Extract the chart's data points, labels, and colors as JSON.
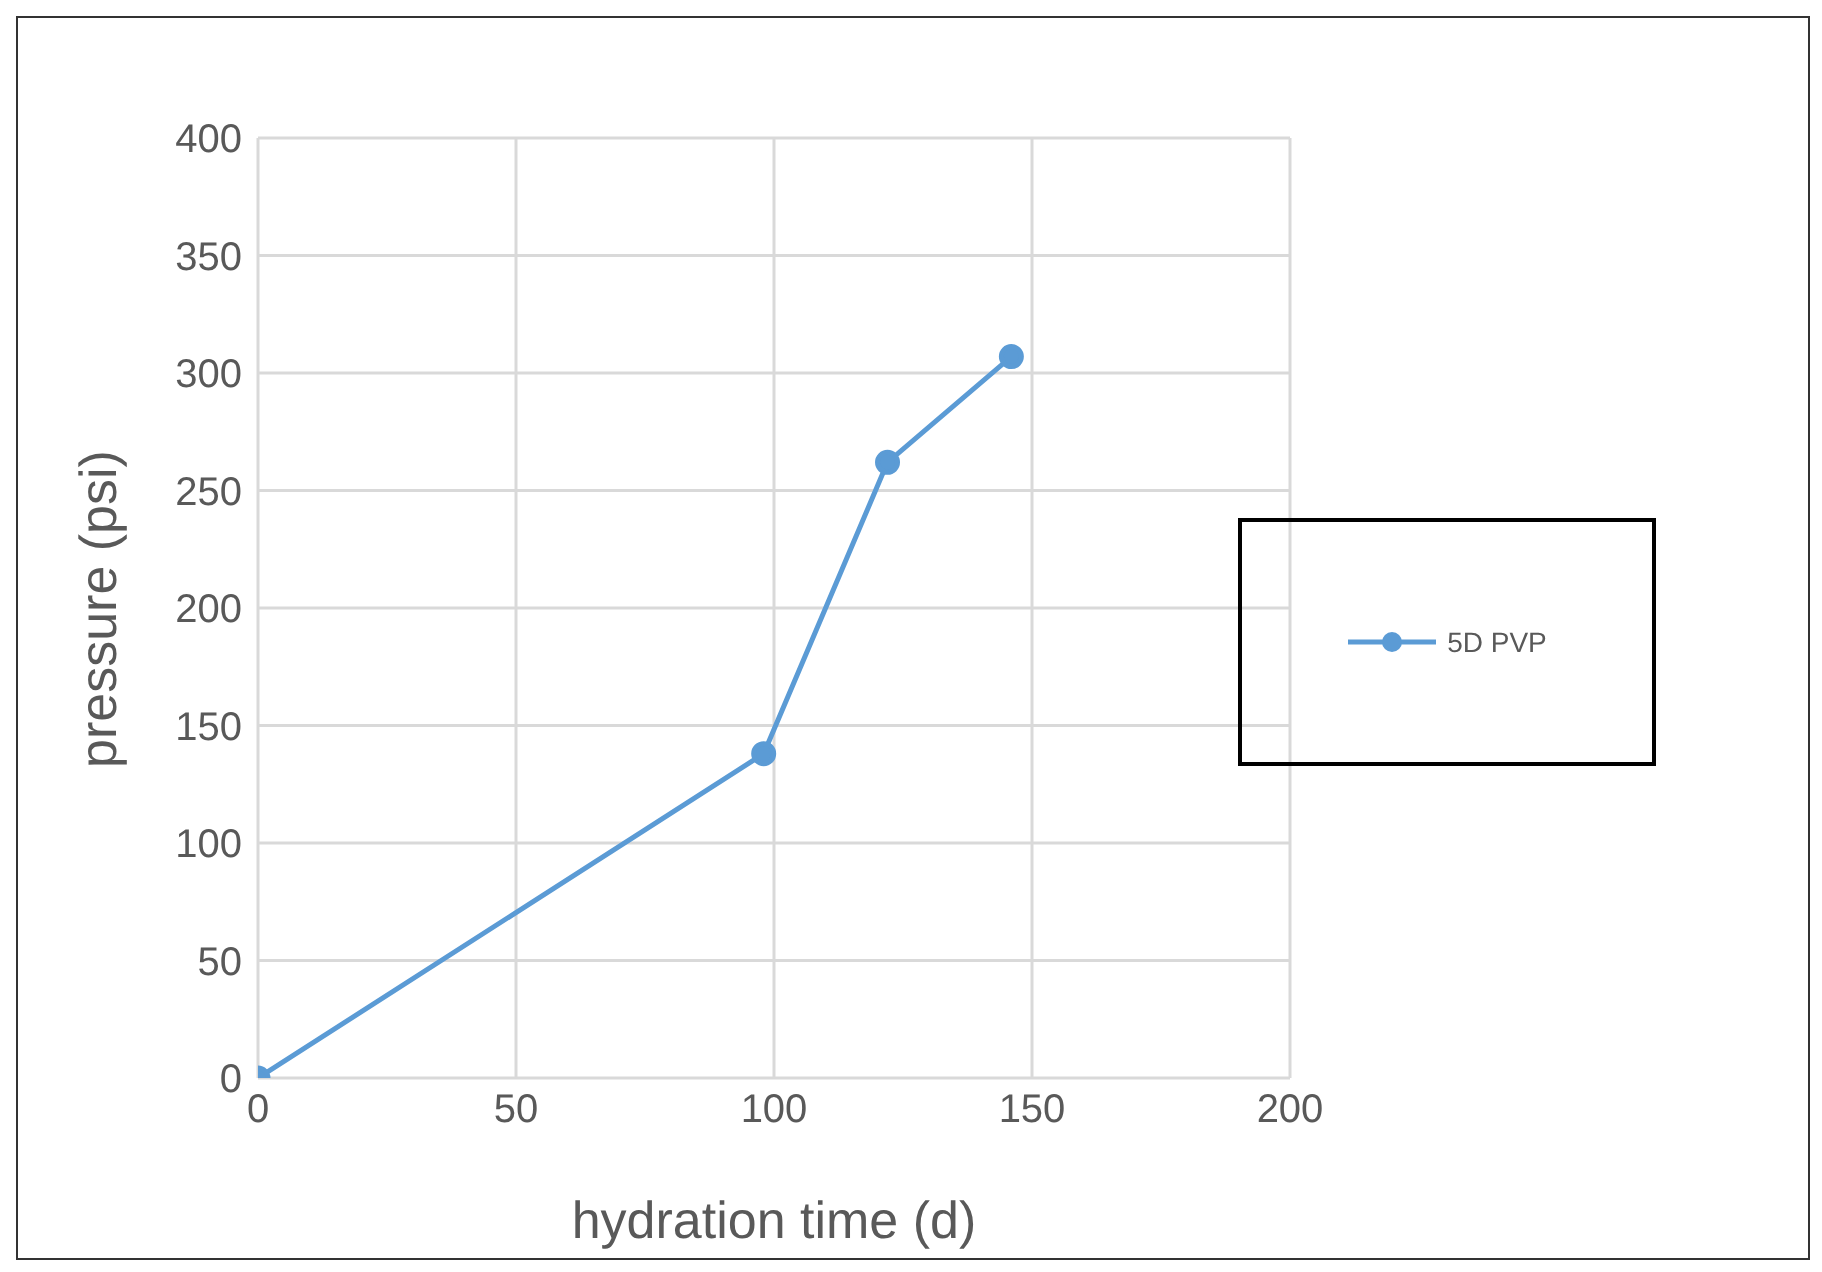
{
  "chart_data": {
    "type": "line",
    "xlabel": "hydration time (d)",
    "ylabel": "pressure (psi)",
    "x": [
      0,
      98,
      122,
      146
    ],
    "series": [
      {
        "name": "5D PVP",
        "color": "#5b9bd5",
        "values": [
          0,
          138,
          262,
          307
        ]
      }
    ],
    "xlim": [
      0,
      200
    ],
    "xticks": [
      0,
      50,
      100,
      150,
      200
    ],
    "ylim": [
      0,
      400
    ],
    "yticks": [
      0,
      50,
      100,
      150,
      200,
      250,
      300,
      350,
      400
    ],
    "grid": true,
    "legend": "right",
    "marker": "circle",
    "line_style": "solid"
  }
}
